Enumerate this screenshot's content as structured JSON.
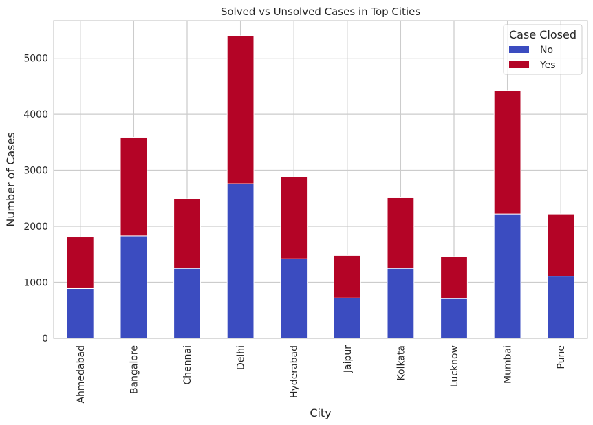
{
  "chart_data": {
    "type": "bar",
    "stacked": true,
    "title": "Solved vs Unsolved Cases in Top Cities",
    "xlabel": "City",
    "ylabel": "Number of Cases",
    "ylim": [
      0,
      5670
    ],
    "yticks": [
      0,
      1000,
      2000,
      3000,
      4000,
      5000
    ],
    "grid": true,
    "legend_title": "Case Closed",
    "legend_position": "top-right",
    "categories": [
      "Ahmedabad",
      "Bangalore",
      "Chennai",
      "Delhi",
      "Hyderabad",
      "Jaipur",
      "Kolkata",
      "Lucknow",
      "Mumbai",
      "Pune"
    ],
    "series": [
      {
        "name": "No",
        "color": "#3b4cc0",
        "values": [
          890,
          1830,
          1250,
          2760,
          1420,
          720,
          1250,
          710,
          2220,
          1110
        ]
      },
      {
        "name": "Yes",
        "color": "#b40426",
        "values": [
          920,
          1760,
          1240,
          2640,
          1460,
          760,
          1260,
          750,
          2200,
          1110
        ]
      }
    ]
  }
}
